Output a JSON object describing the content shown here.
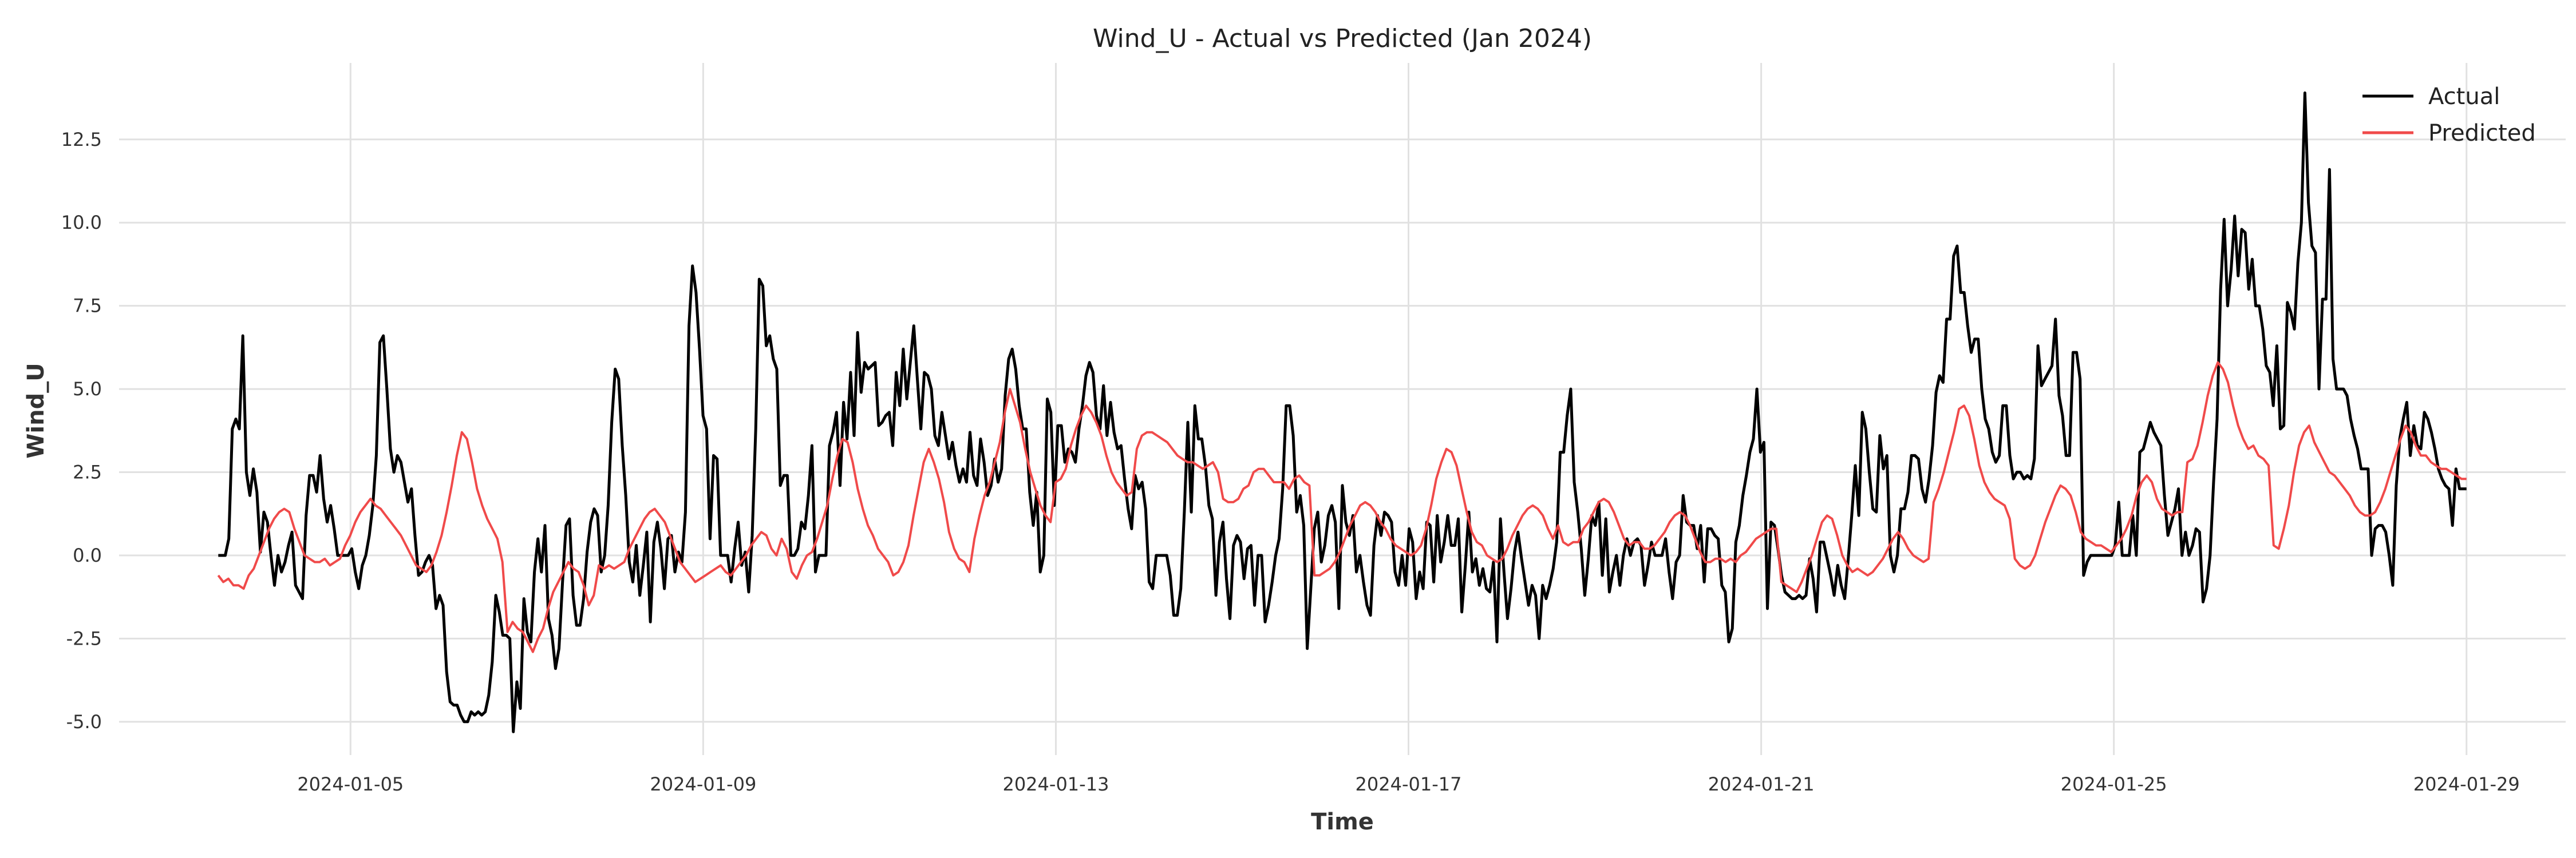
{
  "chart_data": {
    "type": "line",
    "title": "Wind_U - Actual vs Predicted (Jan 2024)",
    "xlabel": "Time",
    "ylabel": "Wind_U",
    "x_start": "2024-01-03 12:00",
    "x_end": "2024-01-29 00:00",
    "xlim": [
      "2024-01-02 09:00",
      "2024-01-30 03:00"
    ],
    "ylim": [
      -6.0,
      14.8
    ],
    "xticks": [
      "2024-01-05",
      "2024-01-09",
      "2024-01-13",
      "2024-01-17",
      "2024-01-21",
      "2024-01-25",
      "2024-01-29"
    ],
    "yticks": [
      "-5.0",
      "-2.5",
      "0.0",
      "2.5",
      "5.0",
      "7.5",
      "10.0",
      "12.5"
    ],
    "grid": true,
    "legend_position": "top-right",
    "series": [
      {
        "name": "Actual",
        "color": "#000000",
        "values": [
          0,
          0,
          0,
          0.5,
          3.8,
          4.1,
          3.8,
          6.6,
          2.5,
          1.8,
          2.6,
          1.9,
          0.1,
          1.3,
          1.0,
          0.0,
          -0.9,
          0.0,
          -0.5,
          -0.2,
          0.3,
          0.7,
          -0.9,
          -1.1,
          -1.3,
          1.2,
          2.4,
          2.4,
          1.9,
          3.0,
          1.7,
          1.0,
          1.5,
          0.8,
          0.0,
          0.0,
          0.0,
          0.0,
          0.2,
          -0.5,
          -1.0,
          -0.3,
          0.0,
          0.6,
          1.5,
          3.0,
          6.4,
          6.6,
          5.0,
          3.2,
          2.5,
          3.0,
          2.8,
          2.2,
          1.6,
          2.0,
          0.6,
          -0.6,
          -0.5,
          -0.2,
          0.0,
          -0.3,
          -1.6,
          -1.2,
          -1.5,
          -3.5,
          -4.4,
          -4.5,
          -4.5,
          -4.8,
          -5.0,
          -5.0,
          -4.7,
          -4.8,
          -4.7,
          -4.8,
          -4.7,
          -4.2,
          -3.2,
          -1.2,
          -1.7,
          -2.4,
          -2.4,
          -2.5,
          -5.3,
          -3.8,
          -4.6,
          -1.3,
          -2.3,
          -2.6,
          -0.5,
          0.5,
          -0.5,
          0.9,
          -1.9,
          -2.4,
          -3.4,
          -2.8,
          -0.8,
          0.9,
          1.1,
          -1.2,
          -2.1,
          -2.1,
          -1.3,
          0.1,
          1.0,
          1.4,
          1.2,
          -0.5,
          0.0,
          1.5,
          4.0,
          5.6,
          5.3,
          3.3,
          1.8,
          -0.2,
          -0.8,
          0.3,
          -1.2,
          -0.3,
          0.7,
          -2.0,
          0.4,
          1.0,
          0.2,
          -1.0,
          0.5,
          0.6,
          -0.5,
          0.1,
          -0.2,
          1.3,
          6.9,
          8.7,
          7.9,
          6.2,
          4.2,
          3.8,
          0.5,
          3.0,
          2.9,
          0.0,
          0.0,
          0.0,
          -0.8,
          0.2,
          1.0,
          -0.3,
          0.1,
          -1.1,
          0.6,
          3.8,
          8.3,
          8.1,
          6.3,
          6.6,
          5.9,
          5.6,
          2.1,
          2.4,
          2.4,
          0.0,
          0.0,
          0.2,
          1.0,
          0.8,
          1.8,
          3.3,
          -0.5,
          0.0,
          0.0,
          0.0,
          3.3,
          3.7,
          4.3,
          2.1,
          4.6,
          3.5,
          5.5,
          3.6,
          6.7,
          4.9,
          5.8,
          5.6,
          5.7,
          5.8,
          3.9,
          4.0,
          4.2,
          4.3,
          3.3,
          5.5,
          4.5,
          6.2,
          4.7,
          5.8,
          6.9,
          5.3,
          3.8,
          5.5,
          5.4,
          5.0,
          3.6,
          3.3,
          4.3,
          3.6,
          2.9,
          3.4,
          2.7,
          2.2,
          2.6,
          2.2,
          3.7,
          2.4,
          2.1,
          3.5,
          2.8,
          1.8,
          2.1,
          2.9,
          2.2,
          2.6,
          4.8,
          5.9,
          6.2,
          5.6,
          4.5,
          3.8,
          3.8,
          1.9,
          0.9,
          1.9,
          -0.5,
          0.0,
          4.7,
          4.3,
          1.5,
          3.9,
          3.9,
          2.8,
          3.2,
          3.1,
          2.8,
          3.8,
          4.5,
          5.4,
          5.8,
          5.5,
          4.2,
          3.8,
          5.1,
          3.6,
          4.6,
          3.7,
          3.2,
          3.3,
          2.3,
          1.4,
          0.8,
          2.4,
          2.0,
          2.2,
          1.4,
          -0.8,
          -1.0,
          0.0,
          0.0,
          0.0,
          0.0,
          -0.6,
          -1.8,
          -1.8,
          -1.0,
          1.3,
          4.0,
          1.3,
          4.5,
          3.5,
          3.5,
          2.7,
          1.5,
          1.1,
          -1.2,
          0.4,
          1.0,
          -0.7,
          -1.9,
          0.3,
          0.6,
          0.4,
          -0.7,
          0.2,
          0.3,
          -1.5,
          0.0,
          0.0,
          -2.0,
          -1.5,
          -0.8,
          0.0,
          0.5,
          2.0,
          4.5,
          4.5,
          3.6,
          1.3,
          1.8,
          0.9,
          -2.8,
          -1.0,
          0.8,
          1.3,
          -0.2,
          0.3,
          1.2,
          1.5,
          1.0,
          -1.6,
          2.1,
          1.0,
          0.6,
          1.2,
          -0.5,
          0.0,
          -0.8,
          -1.5,
          -1.8,
          0.3,
          1.2,
          0.6,
          1.3,
          1.2,
          1.0,
          -0.5,
          -0.9,
          0.0,
          -0.9,
          0.8,
          0.4,
          -1.3,
          -0.5,
          -1.0,
          1.0,
          0.9,
          -0.8,
          1.2,
          -0.2,
          0.4,
          1.2,
          0.3,
          0.3,
          1.1,
          -1.7,
          -0.3,
          1.3,
          -0.5,
          -0.1,
          -0.9,
          -0.4,
          -1.0,
          -1.1,
          -0.2,
          -2.6,
          1.1,
          -0.5,
          -1.9,
          -1.0,
          0.1,
          0.7,
          -0.1,
          -0.8,
          -1.5,
          -0.9,
          -1.2,
          -2.5,
          -0.9,
          -1.3,
          -0.9,
          -0.4,
          0.4,
          3.1,
          3.1,
          4.2,
          5.0,
          2.2,
          1.3,
          0.2,
          -1.2,
          -0.1,
          1.2,
          0.9,
          1.6,
          -0.6,
          1.1,
          -1.1,
          -0.5,
          0.0,
          -0.9,
          0.0,
          0.5,
          0.0,
          0.4,
          0.5,
          0.3,
          -0.9,
          -0.3,
          0.4,
          0.0,
          0.0,
          0.0,
          0.5,
          -0.5,
          -1.3,
          -0.2,
          0.0,
          1.8,
          1.0,
          0.9,
          0.9,
          0.2,
          0.9,
          -0.8,
          0.8,
          0.8,
          0.6,
          0.5,
          -0.9,
          -1.1,
          -2.6,
          -2.2,
          0.4,
          0.9,
          1.8,
          2.4,
          3.1,
          3.5,
          5.0,
          3.1,
          3.4,
          -1.6,
          1.0,
          0.9,
          0.2,
          -0.6,
          -1.1,
          -1.2,
          -1.3,
          -1.3,
          -1.2,
          -1.3,
          -1.2,
          -0.1,
          -0.7,
          -1.7,
          0.4,
          0.4,
          -0.1,
          -0.6,
          -1.2,
          -0.3,
          -0.9,
          -1.3,
          -0.1,
          1.2,
          2.7,
          1.2,
          4.3,
          3.8,
          2.5,
          1.4,
          1.3,
          3.6,
          2.6,
          3.0,
          0.0,
          -0.5,
          0.0,
          1.4,
          1.4,
          1.9,
          3.0,
          3.0,
          2.9,
          2.0,
          1.6,
          2.3,
          3.3,
          4.9,
          5.4,
          5.2,
          7.1,
          7.1,
          9.0,
          9.3,
          7.9,
          7.9,
          6.9,
          6.1,
          6.5,
          6.5,
          5.0,
          4.1,
          3.8,
          3.1,
          2.8,
          3.0,
          4.5,
          4.5,
          3.0,
          2.3,
          2.5,
          2.5,
          2.3,
          2.4,
          2.3,
          2.9,
          6.3,
          5.1,
          5.3,
          5.5,
          5.7,
          7.1,
          4.8,
          4.2,
          3.0,
          3.0,
          6.1,
          6.1,
          5.3,
          -0.6,
          -0.2,
          0.0,
          0.0,
          0.0,
          0.0,
          0.0,
          0.0,
          0.0,
          0.3,
          1.6,
          0.0,
          0.0,
          0.0,
          1.2,
          0.0,
          3.1,
          3.2,
          3.6,
          4.0,
          3.7,
          3.5,
          3.3,
          1.8,
          0.6,
          1.0,
          1.4,
          2.0,
          0.0,
          0.7,
          0.0,
          0.3,
          0.8,
          0.7,
          -1.4,
          -1.0,
          0.0,
          2.2,
          4.1,
          8.0,
          10.1,
          7.5,
          8.6,
          10.2,
          8.4,
          9.8,
          9.7,
          8.0,
          8.9,
          7.5,
          7.5,
          6.8,
          5.7,
          5.5,
          4.5,
          6.3,
          3.8,
          3.9,
          7.6,
          7.3,
          6.8,
          8.8,
          10.0,
          13.9,
          10.6,
          9.3,
          9.1,
          5.0,
          7.7,
          7.7,
          11.6,
          5.9,
          5.0,
          5.0,
          5.0,
          4.8,
          4.1,
          3.6,
          3.2,
          2.6,
          2.6,
          2.6,
          0.0,
          0.8,
          0.9,
          0.9,
          0.7,
          0.0,
          -0.9,
          2.1,
          3.5,
          4.1,
          4.6,
          3.0,
          3.9,
          3.3,
          3.2,
          4.3,
          4.1,
          3.7,
          3.2,
          2.6,
          2.3,
          2.1,
          2.0,
          0.9,
          2.6,
          2.0,
          2.0,
          2.0
        ]
      },
      {
        "name": "Predicted",
        "color": "#f04a4a",
        "values": [
          -0.6,
          -0.8,
          -0.7,
          -0.9,
          -0.9,
          -1.0,
          -0.6,
          -0.4,
          0.0,
          0.4,
          0.8,
          1.1,
          1.3,
          1.4,
          1.3,
          0.8,
          0.4,
          0.0,
          -0.1,
          -0.2,
          -0.2,
          -0.1,
          -0.3,
          -0.2,
          -0.1,
          0.3,
          0.6,
          1.0,
          1.3,
          1.5,
          1.7,
          1.5,
          1.4,
          1.2,
          1.0,
          0.8,
          0.6,
          0.3,
          0.0,
          -0.3,
          -0.4,
          -0.5,
          -0.3,
          0.1,
          0.6,
          1.3,
          2.1,
          3.0,
          3.7,
          3.5,
          2.8,
          2.0,
          1.5,
          1.1,
          0.8,
          0.5,
          -0.2,
          -2.3,
          -2.0,
          -2.2,
          -2.3,
          -2.6,
          -2.9,
          -2.5,
          -2.2,
          -1.6,
          -1.1,
          -0.8,
          -0.5,
          -0.2,
          -0.4,
          -0.5,
          -0.9,
          -1.5,
          -1.2,
          -0.3,
          -0.4,
          -0.3,
          -0.4,
          -0.3,
          -0.2,
          0.2,
          0.5,
          0.8,
          1.1,
          1.3,
          1.4,
          1.2,
          1.0,
          0.6,
          0.2,
          -0.2,
          -0.4,
          -0.6,
          -0.8,
          -0.7,
          -0.6,
          -0.5,
          -0.4,
          -0.3,
          -0.5,
          -0.6,
          -0.4,
          -0.2,
          0.0,
          0.3,
          0.5,
          0.7,
          0.6,
          0.2,
          0.0,
          0.5,
          0.2,
          -0.5,
          -0.7,
          -0.3,
          0.0,
          0.1,
          0.5,
          1.0,
          1.5,
          2.3,
          3.0,
          3.5,
          3.4,
          2.8,
          2.0,
          1.4,
          0.9,
          0.6,
          0.2,
          0.0,
          -0.2,
          -0.6,
          -0.5,
          -0.2,
          0.3,
          1.2,
          2.0,
          2.8,
          3.2,
          2.8,
          2.3,
          1.6,
          0.7,
          0.2,
          -0.1,
          -0.2,
          -0.5,
          0.5,
          1.2,
          1.8,
          2.2,
          2.8,
          3.4,
          4.3,
          5.0,
          4.5,
          4.0,
          3.2,
          2.5,
          2.0,
          1.5,
          1.2,
          1.0,
          2.2,
          2.3,
          2.6,
          3.3,
          3.8,
          4.2,
          4.5,
          4.3,
          4.0,
          3.6,
          3.0,
          2.5,
          2.2,
          2.0,
          1.8,
          1.9,
          3.2,
          3.6,
          3.7,
          3.7,
          3.6,
          3.5,
          3.4,
          3.2,
          3.0,
          2.9,
          2.8,
          2.8,
          2.7,
          2.6,
          2.7,
          2.8,
          2.5,
          1.7,
          1.6,
          1.6,
          1.7,
          2.0,
          2.1,
          2.5,
          2.6,
          2.6,
          2.4,
          2.2,
          2.2,
          2.2,
          2.0,
          2.3,
          2.4,
          2.2,
          2.1,
          -0.6,
          -0.6,
          -0.5,
          -0.4,
          -0.2,
          0.1,
          0.5,
          0.9,
          1.2,
          1.5,
          1.6,
          1.5,
          1.3,
          1.0,
          0.8,
          0.5,
          0.3,
          0.2,
          0.1,
          0.0,
          0.1,
          0.3,
          0.8,
          1.5,
          2.3,
          2.8,
          3.2,
          3.1,
          2.7,
          2.0,
          1.3,
          0.7,
          0.4,
          0.3,
          0.0,
          -0.1,
          -0.2,
          -0.1,
          0.2,
          0.6,
          0.9,
          1.2,
          1.4,
          1.5,
          1.4,
          1.2,
          0.8,
          0.5,
          0.9,
          0.4,
          0.3,
          0.4,
          0.4,
          0.8,
          1.0,
          1.3,
          1.6,
          1.7,
          1.6,
          1.3,
          0.9,
          0.5,
          0.3,
          0.4,
          0.4,
          0.2,
          0.2,
          0.3,
          0.5,
          0.7,
          1.0,
          1.2,
          1.3,
          1.2,
          0.9,
          0.5,
          0.1,
          -0.2,
          -0.2,
          -0.1,
          -0.1,
          -0.2,
          -0.1,
          -0.2,
          0.0,
          0.1,
          0.3,
          0.5,
          0.6,
          0.7,
          0.8,
          0.8,
          -0.8,
          -0.9,
          -1.0,
          -1.1,
          -0.8,
          -0.4,
          0.0,
          0.5,
          1.0,
          1.2,
          1.1,
          0.6,
          0.0,
          -0.3,
          -0.5,
          -0.4,
          -0.5,
          -0.6,
          -0.5,
          -0.3,
          -0.1,
          0.2,
          0.5,
          0.7,
          0.5,
          0.2,
          0.0,
          -0.1,
          -0.2,
          -0.1,
          1.6,
          2.0,
          2.5,
          3.1,
          3.7,
          4.4,
          4.5,
          4.2,
          3.5,
          2.7,
          2.2,
          1.9,
          1.7,
          1.6,
          1.5,
          1.1,
          -0.1,
          -0.3,
          -0.4,
          -0.3,
          0.0,
          0.5,
          1.0,
          1.4,
          1.8,
          2.1,
          2.0,
          1.8,
          1.3,
          0.7,
          0.5,
          0.4,
          0.3,
          0.3,
          0.2,
          0.1,
          0.3,
          0.5,
          0.8,
          1.2,
          1.8,
          2.2,
          2.4,
          2.2,
          1.7,
          1.4,
          1.3,
          1.2,
          1.3,
          1.3,
          2.8,
          2.9,
          3.3,
          4.0,
          4.8,
          5.4,
          5.8,
          5.6,
          5.2,
          4.5,
          3.9,
          3.5,
          3.2,
          3.3,
          3.0,
          2.9,
          2.7,
          0.3,
          0.2,
          0.8,
          1.5,
          2.5,
          3.3,
          3.7,
          3.9,
          3.4,
          3.1,
          2.8,
          2.5,
          2.4,
          2.2,
          2.0,
          1.8,
          1.5,
          1.3,
          1.2,
          1.2,
          1.3,
          1.6,
          2.0,
          2.5,
          3.0,
          3.5,
          3.9,
          3.7,
          3.3,
          3.0,
          3.0,
          2.8,
          2.7,
          2.6,
          2.6,
          2.5,
          2.4,
          2.3,
          2.3
        ]
      }
    ]
  },
  "legend": {
    "actual_label": "Actual",
    "predicted_label": "Predicted"
  }
}
